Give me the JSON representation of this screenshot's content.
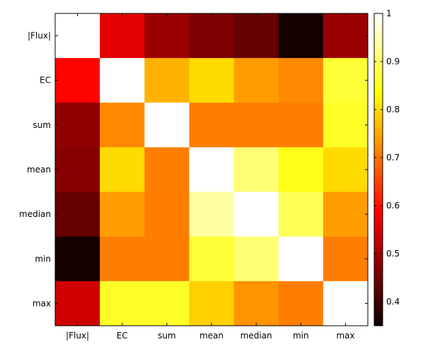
{
  "chart_data": {
    "type": "heatmap",
    "labels": [
      "|Flux|",
      "EC",
      "sum",
      "mean",
      "median",
      "min",
      "max"
    ],
    "matrix": [
      [
        1.0,
        0.56,
        0.49,
        0.46,
        0.44,
        0.36,
        0.49
      ],
      [
        0.59,
        1.0,
        0.76,
        0.8,
        0.74,
        0.72,
        0.87
      ],
      [
        0.48,
        0.72,
        1.0,
        0.71,
        0.71,
        0.71,
        0.86
      ],
      [
        0.47,
        0.8,
        0.71,
        1.0,
        0.91,
        0.85,
        0.8
      ],
      [
        0.44,
        0.74,
        0.71,
        0.94,
        1.0,
        0.89,
        0.74
      ],
      [
        0.36,
        0.71,
        0.71,
        0.87,
        0.91,
        1.0,
        0.71
      ],
      [
        0.54,
        0.86,
        0.86,
        0.79,
        0.73,
        0.71,
        1.0
      ]
    ],
    "colorbar": {
      "colormap": "hot",
      "range": [
        0.35,
        1.0
      ],
      "ticks": [
        "0.4",
        "0.5",
        "0.6",
        "0.7",
        "0.8",
        "0.9",
        "1"
      ]
    },
    "title": "",
    "xlabel": "",
    "ylabel": ""
  }
}
